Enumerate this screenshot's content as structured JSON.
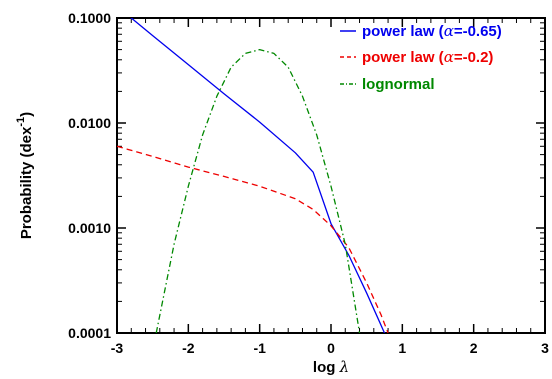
{
  "chart_data": {
    "type": "line",
    "xlabel": "log λ",
    "ylabel": "Probability (dex",
    "ylabel_sup": "-1",
    "ylabel_close": ")",
    "xlim": [
      -3,
      3
    ],
    "ylim": [
      0.0001,
      0.1
    ],
    "yscale": "log",
    "x_ticks": [
      -3,
      -2,
      -1,
      0,
      1,
      2,
      3
    ],
    "x_tick_labels": [
      "-3",
      "-2",
      "-1",
      "0",
      "1",
      "2",
      "3"
    ],
    "y_ticks": [
      0.0001,
      0.001,
      0.01,
      0.1
    ],
    "y_tick_labels": [
      "0.0001",
      "0.0010",
      "0.0100",
      "0.1000"
    ],
    "legend_position": "top-right",
    "series": [
      {
        "name": "power law (α=-0.65)",
        "legend_prefix": "power law (",
        "legend_symbol": "α",
        "legend_suffix": "=-0.65)",
        "color": "#0000ee",
        "dash": "solid",
        "x": [
          -3.0,
          -2.8,
          -2.5,
          -2.0,
          -1.5,
          -1.0,
          -0.5,
          -0.25,
          0.0,
          0.25,
          0.5,
          0.75
        ],
        "y": [
          0.12,
          0.1,
          0.068,
          0.036,
          0.019,
          0.0102,
          0.0052,
          0.0034,
          0.0011,
          0.00055,
          0.00024,
          0.0001
        ]
      },
      {
        "name": "power law (α=-0.2)",
        "legend_prefix": "power law (",
        "legend_symbol": "α",
        "legend_suffix": "=-0.2)",
        "color": "#ee0000",
        "dash": "dashed",
        "x": [
          -3.0,
          -2.5,
          -2.0,
          -1.5,
          -1.0,
          -0.5,
          -0.25,
          0.0,
          0.25,
          0.5,
          0.7,
          0.8
        ],
        "y": [
          0.006,
          0.0048,
          0.0038,
          0.0031,
          0.0025,
          0.0019,
          0.0015,
          0.00105,
          0.00065,
          0.0003,
          0.00015,
          0.0001
        ]
      },
      {
        "name": "lognormal",
        "legend_prefix": "lognormal",
        "legend_symbol": "",
        "legend_suffix": "",
        "color": "#008800",
        "dash": "dashdot",
        "x": [
          -2.45,
          -2.2,
          -2.0,
          -1.8,
          -1.6,
          -1.4,
          -1.2,
          -1.0,
          -0.8,
          -0.6,
          -0.4,
          -0.2,
          0.0,
          0.2,
          0.4
        ],
        "y": [
          0.0001,
          0.0007,
          0.0025,
          0.0077,
          0.018,
          0.034,
          0.046,
          0.05,
          0.046,
          0.034,
          0.018,
          0.0077,
          0.0025,
          0.0007,
          0.0001
        ]
      }
    ]
  }
}
